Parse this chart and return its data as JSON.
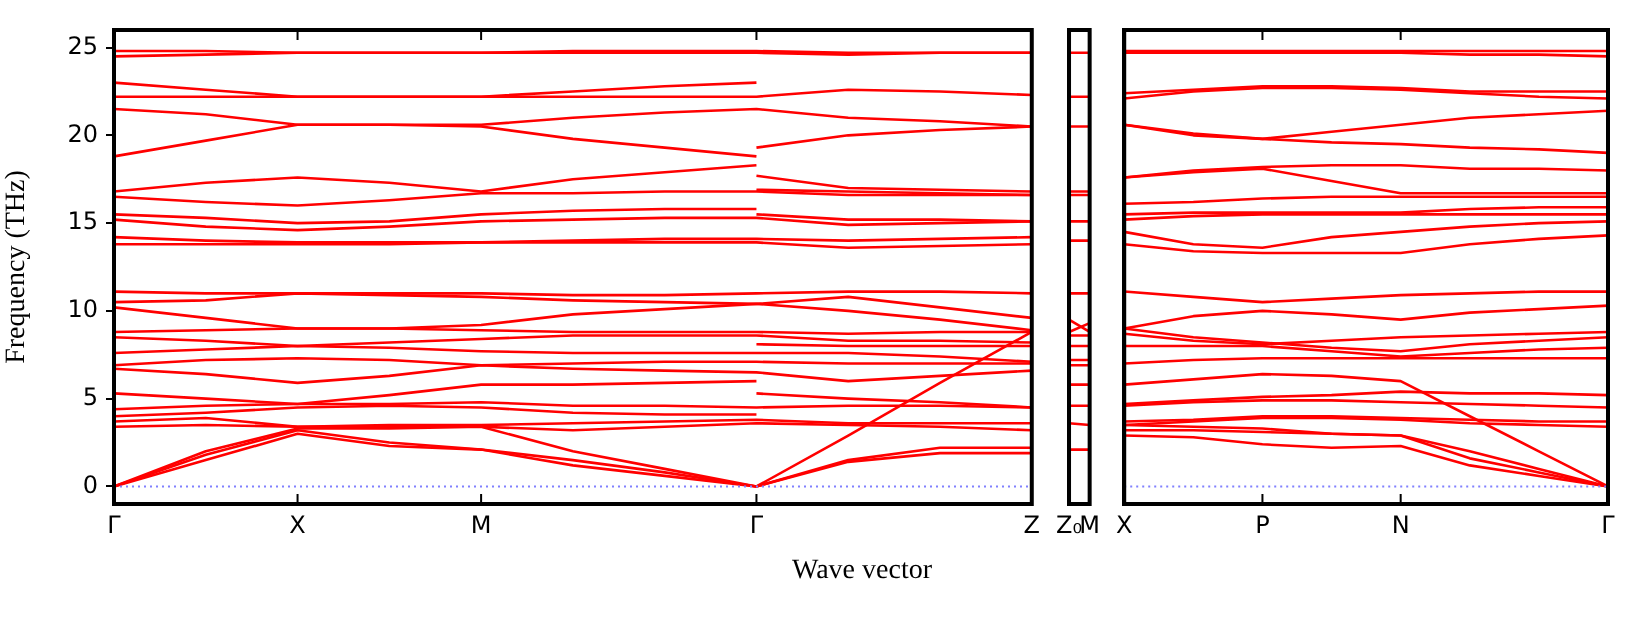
{
  "chart_data": [
    {
      "type": "line",
      "xlabel": "Wave vector",
      "ylabel": "Frequency (THz)",
      "categories": [
        "Γ",
        null,
        "X",
        null,
        "M",
        null,
        null,
        "Γ",
        null,
        null,
        "Z"
      ],
      "ylim": [
        -1,
        26
      ],
      "yticks": [
        0,
        5,
        10,
        15,
        20,
        25
      ],
      "grid": false,
      "marker": "none",
      "line_style": "solid",
      "ref_lines": [
        {
          "axis": "y",
          "value": 0,
          "color": "#8080ff",
          "line_style": "dotted"
        }
      ],
      "series": [
        {
          "color": "#ff0000",
          "values": [
            24.8,
            24.8,
            24.7,
            24.7,
            24.7,
            24.7,
            24.7,
            24.7,
            24.6,
            24.7,
            24.7
          ]
        },
        {
          "color": "#ff0000",
          "values": [
            24.5,
            24.6,
            24.7,
            24.7,
            24.7,
            24.8,
            24.8,
            24.8,
            24.7,
            24.7,
            24.7
          ]
        },
        {
          "color": "#ff0000",
          "values": [
            23.0,
            22.6,
            22.2,
            22.2,
            22.2,
            22.5,
            22.8,
            23.0,
            null,
            null,
            null
          ]
        },
        {
          "color": "#ff0000",
          "values": [
            22.2,
            22.2,
            22.2,
            22.2,
            22.2,
            22.2,
            22.2,
            22.2,
            22.6,
            22.5,
            22.3
          ]
        },
        {
          "color": "#ff0000",
          "values": [
            21.5,
            21.2,
            20.6,
            20.6,
            20.6,
            21.0,
            21.3,
            21.5,
            21.0,
            20.8,
            20.5
          ]
        },
        {
          "color": "#ff0000",
          "values": [
            18.8,
            19.7,
            20.6,
            20.6,
            20.5,
            19.8,
            19.3,
            18.8,
            null,
            null,
            null
          ]
        },
        {
          "color": "#ff0000",
          "values": [
            16.8,
            17.3,
            17.6,
            17.3,
            16.8,
            17.5,
            17.9,
            18.3,
            null,
            null,
            null
          ]
        },
        {
          "color": "#ff0000",
          "values": [
            16.5,
            16.2,
            16.0,
            16.3,
            16.7,
            16.7,
            16.8,
            16.8,
            16.6,
            16.6,
            16.6
          ]
        },
        {
          "color": "#ff0000",
          "values": [
            15.5,
            15.3,
            15.0,
            15.1,
            15.5,
            15.7,
            15.8,
            15.8,
            null,
            null,
            null
          ]
        },
        {
          "color": "#ff0000",
          "values": [
            15.2,
            14.8,
            14.6,
            14.8,
            15.1,
            15.2,
            15.3,
            15.3,
            14.9,
            15.0,
            15.1
          ]
        },
        {
          "color": "#ff0000",
          "values": [
            14.2,
            14.0,
            13.9,
            13.9,
            13.9,
            14.0,
            14.1,
            14.1,
            14.0,
            14.1,
            14.2
          ]
        },
        {
          "color": "#ff0000",
          "values": [
            13.8,
            13.8,
            13.8,
            13.8,
            13.9,
            13.9,
            13.9,
            13.9,
            13.6,
            13.7,
            13.8
          ]
        },
        {
          "color": "#ff0000",
          "values": [
            11.1,
            11.0,
            11.0,
            11.0,
            11.0,
            10.9,
            10.9,
            11.0,
            11.1,
            11.1,
            11.0
          ]
        },
        {
          "color": "#ff0000",
          "values": [
            10.5,
            10.6,
            11.0,
            10.9,
            10.8,
            10.6,
            10.5,
            10.4,
            10.0,
            9.5,
            8.9
          ]
        },
        {
          "color": "#ff0000",
          "values": [
            10.2,
            9.6,
            9.0,
            9.0,
            9.2,
            9.8,
            10.1,
            10.4,
            10.8,
            10.2,
            9.6
          ]
        },
        {
          "color": "#ff0000",
          "values": [
            8.8,
            8.9,
            9.0,
            9.0,
            8.9,
            8.8,
            8.8,
            8.8,
            8.7,
            8.8,
            8.8
          ]
        },
        {
          "color": "#ff0000",
          "values": [
            8.5,
            8.3,
            8.0,
            8.2,
            8.4,
            8.6,
            8.6,
            8.6,
            8.3,
            8.3,
            8.2
          ]
        },
        {
          "color": "#ff0000",
          "values": [
            7.6,
            7.8,
            8.0,
            7.9,
            7.7,
            7.6,
            7.6,
            7.6,
            7.6,
            7.4,
            7.1
          ]
        },
        {
          "color": "#ff0000",
          "values": [
            6.9,
            7.2,
            7.3,
            7.2,
            6.9,
            7.0,
            7.1,
            7.1,
            7.0,
            7.0,
            7.0
          ]
        },
        {
          "color": "#ff0000",
          "values": [
            6.7,
            6.4,
            5.9,
            6.3,
            6.9,
            6.7,
            6.6,
            6.5,
            6.0,
            6.3,
            6.6
          ]
        },
        {
          "color": "#ff0000",
          "values": [
            5.3,
            5.0,
            4.7,
            5.2,
            5.8,
            5.8,
            5.9,
            6.0,
            null,
            null,
            null
          ]
        },
        {
          "color": "#ff0000",
          "values": [
            4.4,
            4.6,
            4.7,
            4.7,
            4.8,
            4.6,
            4.6,
            4.5,
            4.6,
            4.6,
            4.5
          ]
        },
        {
          "color": "#ff0000",
          "values": [
            4.0,
            4.2,
            4.5,
            4.6,
            4.5,
            4.2,
            4.1,
            4.1,
            null,
            null,
            null
          ]
        },
        {
          "color": "#ff0000",
          "values": [
            3.7,
            3.9,
            3.4,
            3.5,
            3.5,
            3.6,
            3.7,
            3.8,
            3.6,
            3.6,
            3.6
          ]
        },
        {
          "color": "#ff0000",
          "values": [
            3.4,
            3.5,
            3.4,
            3.4,
            3.4,
            3.2,
            3.4,
            3.6,
            3.5,
            3.4,
            3.2
          ]
        },
        {
          "color": "#ff0000",
          "values": [
            0,
            2.0,
            3.3,
            3.3,
            3.4,
            2.0,
            1.0,
            0,
            2.9,
            5.9,
            8.8
          ]
        },
        {
          "color": "#ff0000",
          "values": [
            0,
            1.8,
            3.2,
            2.5,
            2.1,
            1.5,
            0.8,
            0,
            1.5,
            2.2,
            2.2
          ]
        },
        {
          "color": "#ff0000",
          "values": [
            0,
            1.5,
            3.0,
            2.3,
            2.1,
            1.2,
            0.6,
            0,
            1.4,
            1.9,
            1.9
          ]
        },
        {
          "color": "#ff0000",
          "values": [
            null,
            null,
            null,
            null,
            null,
            null,
            null,
            19.3,
            20.0,
            20.3,
            20.5
          ]
        },
        {
          "color": "#ff0000",
          "values": [
            null,
            null,
            null,
            null,
            null,
            null,
            null,
            17.7,
            17.0,
            16.9,
            16.8
          ]
        },
        {
          "color": "#ff0000",
          "values": [
            null,
            null,
            null,
            null,
            null,
            null,
            null,
            16.9,
            16.8,
            16.7,
            16.6
          ]
        },
        {
          "color": "#ff0000",
          "values": [
            null,
            null,
            null,
            null,
            null,
            null,
            null,
            15.5,
            15.2,
            15.2,
            15.1
          ]
        },
        {
          "color": "#ff0000",
          "values": [
            null,
            null,
            null,
            null,
            null,
            null,
            null,
            8.1,
            8.0,
            8.0,
            8.0
          ]
        },
        {
          "color": "#ff0000",
          "values": [
            null,
            null,
            null,
            null,
            null,
            null,
            null,
            5.3,
            5.0,
            4.8,
            4.5
          ]
        }
      ]
    },
    {
      "type": "line",
      "categories": [
        "Z₀",
        "M"
      ],
      "ylim": [
        -1,
        26
      ],
      "tick_labels": "x",
      "grid": "x",
      "marker": "none",
      "line_style": "solid",
      "series": [
        {
          "color": "#ff0000",
          "values": [
            24.7,
            24.7
          ]
        },
        {
          "color": "#ff0000",
          "values": [
            22.2,
            22.2
          ]
        },
        {
          "color": "#ff0000",
          "values": [
            20.5,
            20.5
          ]
        },
        {
          "color": "#ff0000",
          "values": [
            16.8,
            16.8
          ]
        },
        {
          "color": "#ff0000",
          "values": [
            16.6,
            16.6
          ]
        },
        {
          "color": "#ff0000",
          "values": [
            15.1,
            15.1
          ]
        },
        {
          "color": "#ff0000",
          "values": [
            14.0,
            14.0
          ]
        },
        {
          "color": "#ff0000",
          "values": [
            11.0,
            11.0
          ]
        },
        {
          "color": "#ff0000",
          "values": [
            9.5,
            8.8
          ]
        },
        {
          "color": "#ff0000",
          "values": [
            8.8,
            9.3
          ]
        },
        {
          "color": "#ff0000",
          "values": [
            8.6,
            8.6
          ]
        },
        {
          "color": "#ff0000",
          "values": [
            8.0,
            8.0
          ]
        },
        {
          "color": "#ff0000",
          "values": [
            7.2,
            7.2
          ]
        },
        {
          "color": "#ff0000",
          "values": [
            6.9,
            6.9
          ]
        },
        {
          "color": "#ff0000",
          "values": [
            5.8,
            5.8
          ]
        },
        {
          "color": "#ff0000",
          "values": [
            4.6,
            4.6
          ]
        },
        {
          "color": "#ff0000",
          "values": [
            3.6,
            3.5
          ]
        },
        {
          "color": "#ff0000",
          "values": [
            2.1,
            2.1
          ]
        }
      ]
    },
    {
      "type": "line",
      "categories": [
        "X",
        null,
        "P",
        null,
        "N",
        null,
        null,
        "Γ"
      ],
      "ylim": [
        -1,
        26
      ],
      "tick_labels": "x",
      "grid": false,
      "marker": "none",
      "line_style": "solid",
      "ref_lines": [
        {
          "axis": "y",
          "value": 0,
          "color": "#8080ff",
          "line_style": "dotted"
        }
      ],
      "series": [
        {
          "color": "#ff0000",
          "values": [
            24.8,
            24.8,
            24.8,
            24.8,
            24.8,
            24.8,
            24.8,
            24.8
          ]
        },
        {
          "color": "#ff0000",
          "values": [
            24.7,
            24.7,
            24.7,
            24.7,
            24.7,
            24.6,
            24.6,
            24.5
          ]
        },
        {
          "color": "#ff0000",
          "values": [
            22.4,
            22.6,
            22.8,
            22.8,
            22.7,
            22.5,
            22.5,
            22.5
          ]
        },
        {
          "color": "#ff0000",
          "values": [
            22.1,
            22.5,
            22.7,
            22.7,
            22.6,
            22.4,
            22.2,
            22.1
          ]
        },
        {
          "color": "#ff0000",
          "values": [
            20.6,
            20.1,
            19.8,
            20.2,
            20.6,
            21.0,
            21.2,
            21.4
          ]
        },
        {
          "color": "#ff0000",
          "values": [
            20.6,
            20.0,
            19.8,
            19.6,
            19.5,
            19.3,
            19.2,
            19.0
          ]
        },
        {
          "color": "#ff0000",
          "values": [
            17.6,
            18.0,
            18.2,
            18.3,
            18.3,
            18.1,
            18.1,
            18.0
          ]
        },
        {
          "color": "#ff0000",
          "values": [
            17.6,
            17.9,
            18.1,
            17.4,
            16.7,
            16.7,
            16.7,
            16.7
          ]
        },
        {
          "color": "#ff0000",
          "values": [
            16.1,
            16.2,
            16.4,
            16.5,
            16.5,
            16.5,
            16.5,
            16.5
          ]
        },
        {
          "color": "#ff0000",
          "values": [
            15.5,
            15.6,
            15.6,
            15.6,
            15.6,
            15.8,
            15.9,
            15.9
          ]
        },
        {
          "color": "#ff0000",
          "values": [
            15.2,
            15.4,
            15.5,
            15.5,
            15.5,
            15.5,
            15.5,
            15.5
          ]
        },
        {
          "color": "#ff0000",
          "values": [
            14.5,
            13.8,
            13.6,
            14.2,
            14.5,
            14.8,
            15.0,
            15.1
          ]
        },
        {
          "color": "#ff0000",
          "values": [
            13.8,
            13.4,
            13.3,
            13.3,
            13.3,
            13.8,
            14.1,
            14.3
          ]
        },
        {
          "color": "#ff0000",
          "values": [
            11.1,
            10.8,
            10.5,
            10.7,
            10.9,
            11.0,
            11.1,
            11.1
          ]
        },
        {
          "color": "#ff0000",
          "values": [
            9.0,
            9.7,
            10.0,
            9.8,
            9.5,
            9.9,
            10.1,
            10.3
          ]
        },
        {
          "color": "#ff0000",
          "values": [
            9.0,
            8.5,
            8.2,
            7.9,
            7.7,
            8.1,
            8.3,
            8.5
          ]
        },
        {
          "color": "#ff0000",
          "values": [
            8.7,
            8.3,
            8.1,
            8.3,
            8.5,
            8.6,
            8.7,
            8.8
          ]
        },
        {
          "color": "#ff0000",
          "values": [
            8.0,
            8.0,
            8.0,
            7.7,
            7.4,
            7.6,
            7.8,
            7.9
          ]
        },
        {
          "color": "#ff0000",
          "values": [
            7.0,
            7.2,
            7.3,
            7.3,
            7.3,
            7.3,
            7.3,
            7.3
          ]
        },
        {
          "color": "#ff0000",
          "values": [
            5.8,
            6.1,
            6.4,
            6.3,
            6.0,
            4.0,
            2.0,
            0
          ]
        },
        {
          "color": "#ff0000",
          "values": [
            4.7,
            4.9,
            5.1,
            5.2,
            5.4,
            5.3,
            5.3,
            5.2
          ]
        },
        {
          "color": "#ff0000",
          "values": [
            4.6,
            4.8,
            4.9,
            4.9,
            4.8,
            4.7,
            4.6,
            4.5
          ]
        },
        {
          "color": "#ff0000",
          "values": [
            3.7,
            3.8,
            4.0,
            4.0,
            3.9,
            3.8,
            3.7,
            3.7
          ]
        },
        {
          "color": "#ff0000",
          "values": [
            3.5,
            3.7,
            3.9,
            3.9,
            3.8,
            3.6,
            3.5,
            3.4
          ]
        },
        {
          "color": "#ff0000",
          "values": [
            3.5,
            3.4,
            3.3,
            3.0,
            2.9,
            2.0,
            1.0,
            0
          ]
        },
        {
          "color": "#ff0000",
          "values": [
            2.9,
            2.8,
            2.4,
            2.2,
            2.3,
            1.2,
            0.6,
            0
          ]
        },
        {
          "color": "#ff0000",
          "values": [
            3.2,
            3.2,
            3.1,
            3.0,
            2.9,
            1.6,
            0.8,
            0
          ]
        }
      ]
    }
  ]
}
